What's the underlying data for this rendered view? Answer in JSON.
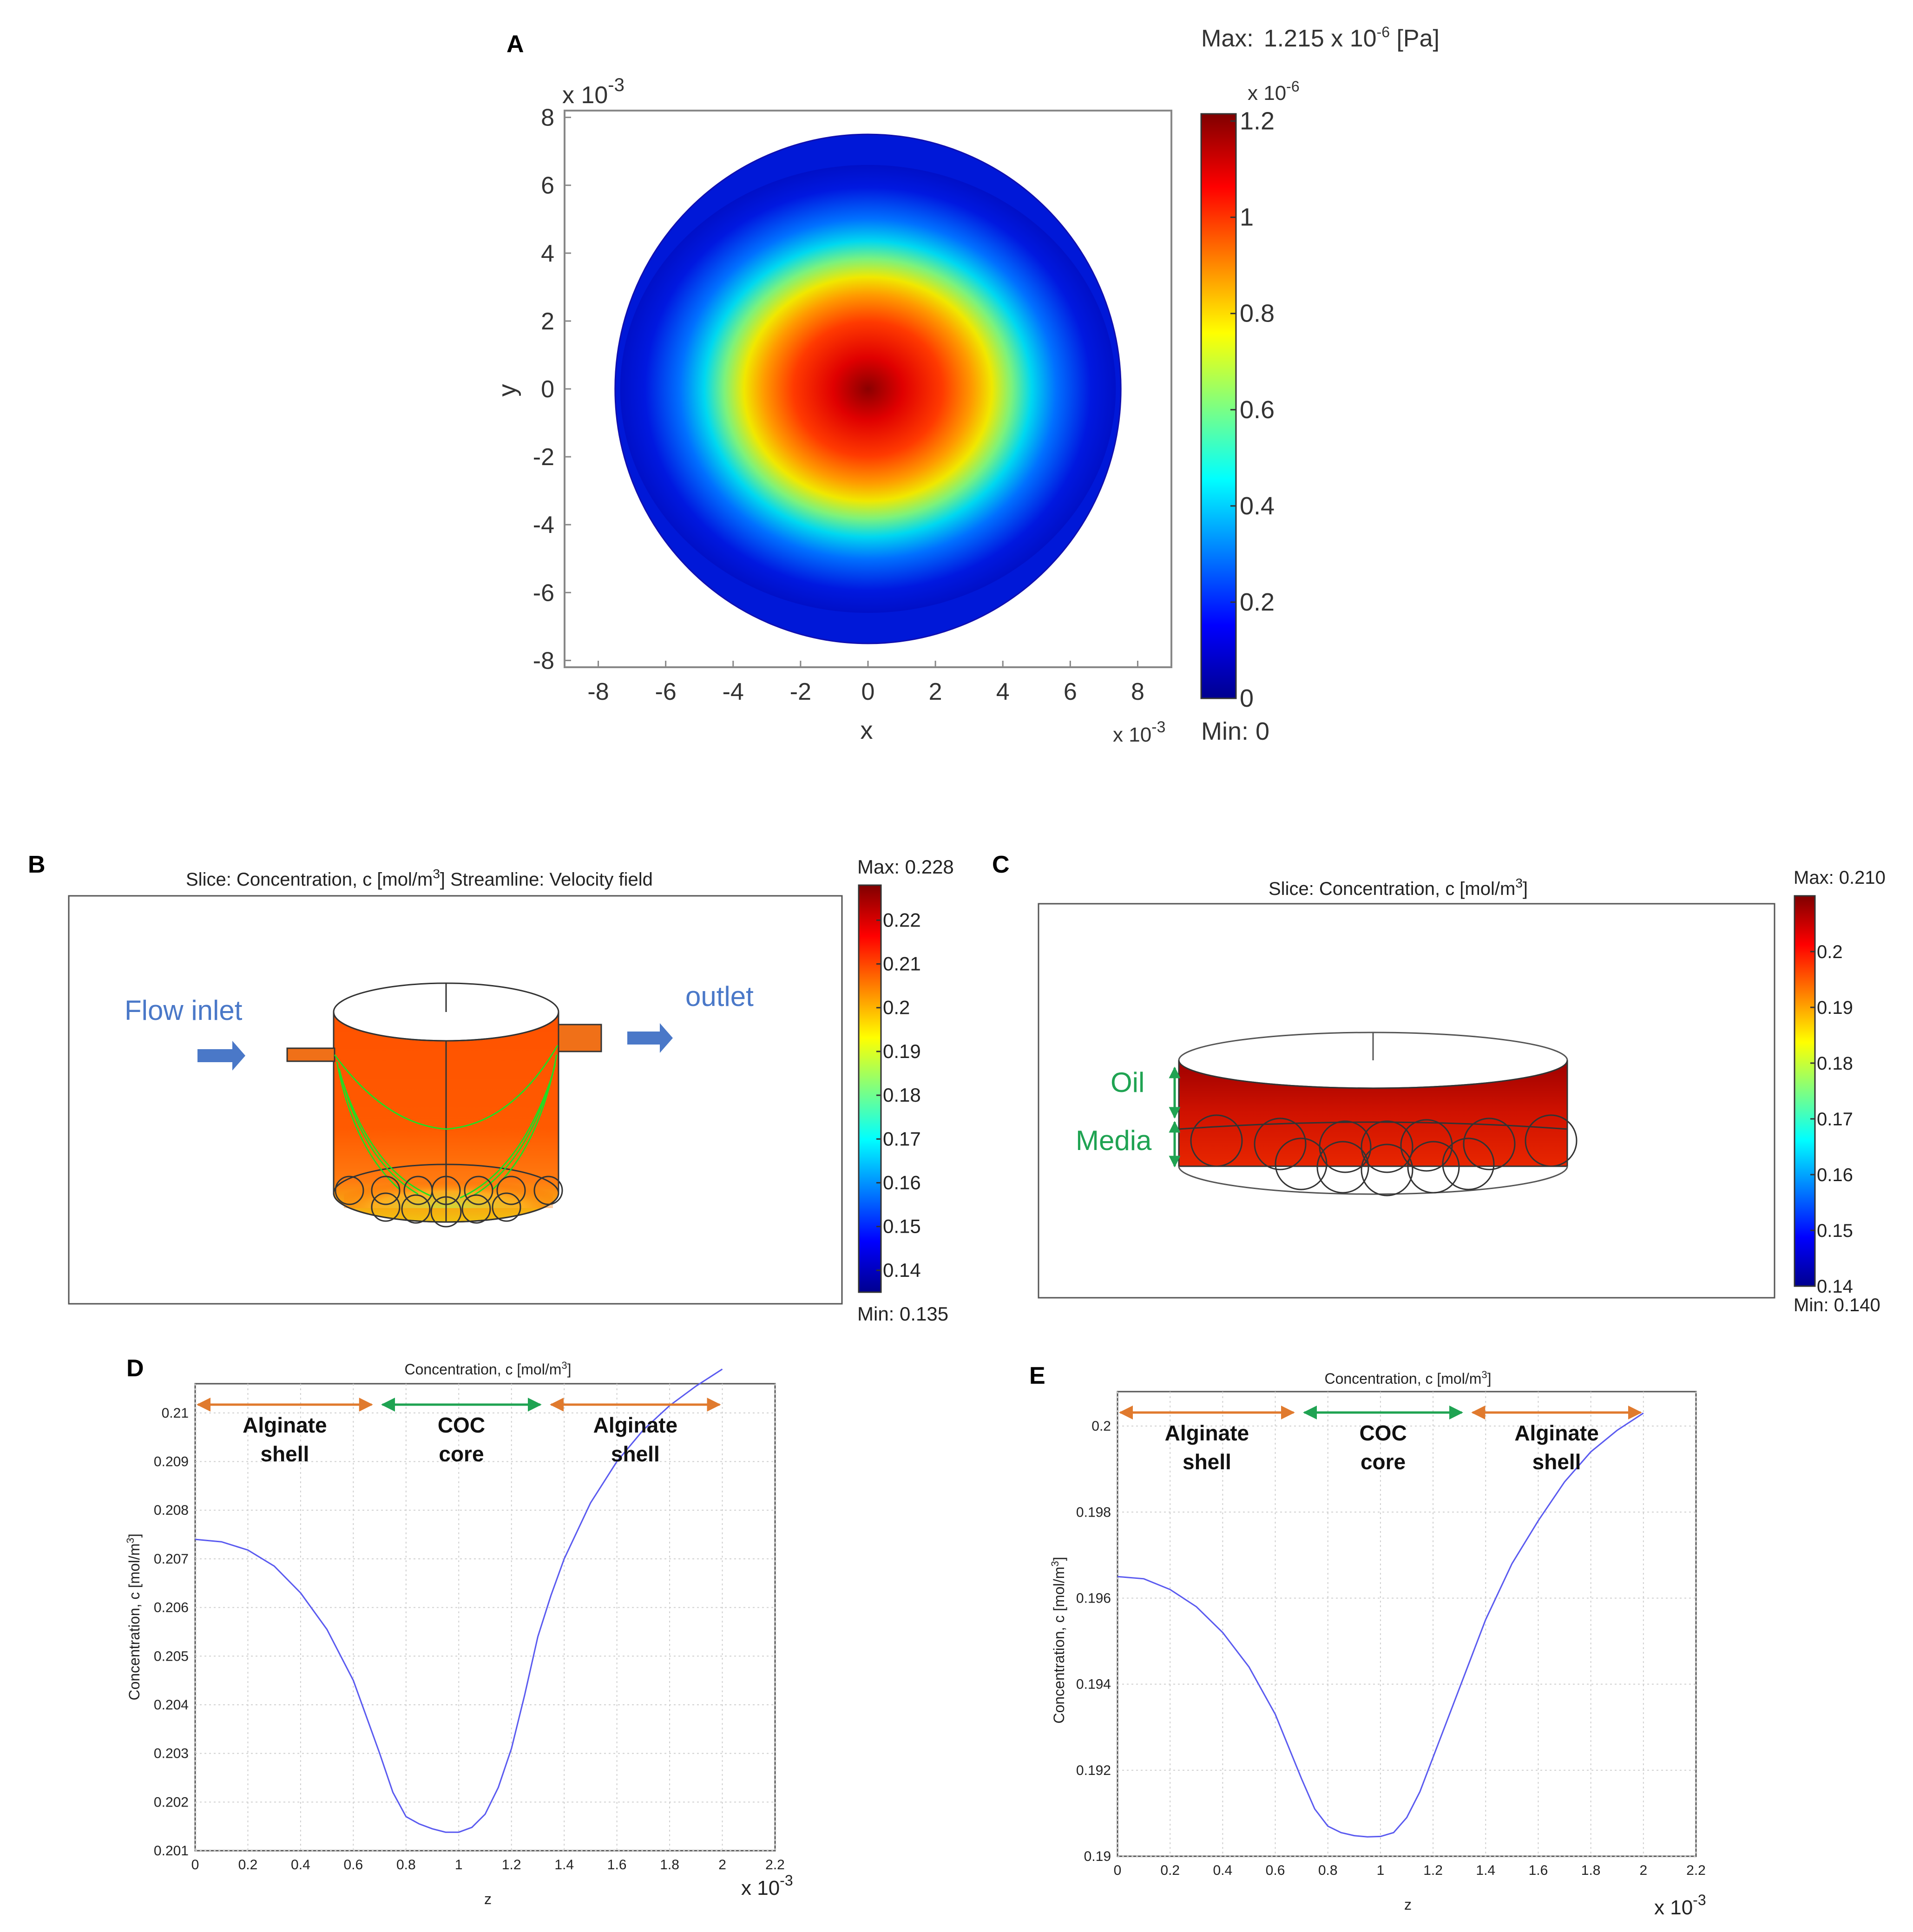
{
  "chart_data": [
    {
      "id": "A",
      "type": "heatmap",
      "panel_label": "A",
      "max_text": "Max:",
      "max_value": "1.215 x 10",
      "max_exp": "-6",
      "max_unit": " [Pa]",
      "min_text": "Min: 0",
      "xlabel": "x",
      "ylabel": "y",
      "x_scale_base": "x 10",
      "x_scale_exp": "-3",
      "y_scale_base": "x 10",
      "y_scale_exp": "-3",
      "xlim": [
        -9,
        9
      ],
      "ylim": [
        -8.2,
        8.2
      ],
      "xticks": [
        "-8",
        "-6",
        "-4",
        "-2",
        "0",
        "2",
        "4",
        "6",
        "8"
      ],
      "yticks": [
        "8",
        "6",
        "4",
        "2",
        "0",
        "-2",
        "-4",
        "-6",
        "-8"
      ],
      "domain_radius": 7.5,
      "peak_center": [
        0,
        0
      ],
      "colorbar_scale_base": "x 10",
      "colorbar_scale_exp": "-6",
      "colorbar_range": [
        0,
        1.215
      ],
      "colorbar_ticks": [
        "1.2",
        "1",
        "0.8",
        "0.6",
        "0.4",
        "0.2",
        "0"
      ],
      "colorbar_tick_values": [
        1.2,
        1.0,
        0.8,
        0.6,
        0.4,
        0.2,
        0.0
      ]
    },
    {
      "id": "B",
      "type": "3d-slice",
      "panel_label": "B",
      "title_slice": "Slice: Concentration, c [mol/m",
      "title_unit_sup": "3",
      "title_stream": "]   Streamline: Velocity field",
      "annotations": [
        "Flow inlet",
        "outlet"
      ],
      "max_label": "Max: 0.228",
      "min_label": "Min: 0.135",
      "colorbar_range": [
        0.135,
        0.228
      ],
      "colorbar_ticks": [
        "0.22",
        "0.21",
        "0.2",
        "0.19",
        "0.18",
        "0.17",
        "0.16",
        "0.15",
        "0.14"
      ],
      "colorbar_tick_values": [
        0.22,
        0.21,
        0.2,
        0.19,
        0.18,
        0.17,
        0.16,
        0.15,
        0.14
      ]
    },
    {
      "id": "C",
      "type": "3d-slice",
      "panel_label": "C",
      "title_slice": "Slice: Concentration, c [mol/m",
      "title_unit_sup": "3",
      "title_end": "]",
      "annotations": [
        "Oil",
        "Media"
      ],
      "max_label": "Max: 0.210",
      "min_label": "Min: 0.140",
      "colorbar_range": [
        0.14,
        0.21
      ],
      "colorbar_ticks": [
        "0.2",
        "0.19",
        "0.18",
        "0.17",
        "0.16",
        "0.15",
        "0.14"
      ],
      "colorbar_tick_values": [
        0.2,
        0.19,
        0.18,
        0.17,
        0.16,
        0.15,
        0.14
      ]
    },
    {
      "id": "D",
      "type": "line",
      "panel_label": "D",
      "title": "Concentration, c [mol/m",
      "title_sup": "3",
      "title_end": "]",
      "xlabel": "z",
      "ylabel": "Concentration, c [mol/m",
      "ylabel_sup": "3",
      "ylabel_end": "]",
      "x_scale_base": "x 10",
      "x_scale_exp": "-3",
      "xlim": [
        0,
        2.2
      ],
      "ylim": [
        0.201,
        0.2106
      ],
      "xticks": [
        "0",
        "0.2",
        "0.4",
        "0.6",
        "0.8",
        "1",
        "1.2",
        "1.4",
        "1.6",
        "1.8",
        "2",
        "2.2"
      ],
      "xtick_values": [
        0,
        0.2,
        0.4,
        0.6,
        0.8,
        1.0,
        1.2,
        1.4,
        1.6,
        1.8,
        2.0,
        2.2
      ],
      "yticks": [
        "0.21",
        "0.209",
        "0.208",
        "0.207",
        "0.206",
        "0.205",
        "0.204",
        "0.203",
        "0.202",
        "0.201"
      ],
      "ytick_values": [
        0.21,
        0.209,
        0.208,
        0.207,
        0.206,
        0.205,
        0.204,
        0.203,
        0.202,
        0.201
      ],
      "series": [
        {
          "name": "Concentration",
          "x": [
            0,
            0.1,
            0.2,
            0.3,
            0.4,
            0.5,
            0.6,
            0.7,
            0.75,
            0.8,
            0.85,
            0.9,
            0.95,
            1.0,
            1.05,
            1.1,
            1.15,
            1.2,
            1.25,
            1.3,
            1.35,
            1.4,
            1.5,
            1.6,
            1.7,
            1.8,
            1.9,
            2.0
          ],
          "y": [
            0.2074,
            0.20735,
            0.20718,
            0.20685,
            0.2063,
            0.20555,
            0.2045,
            0.203,
            0.2022,
            0.2017,
            0.20155,
            0.20145,
            0.20138,
            0.20138,
            0.20148,
            0.20175,
            0.2023,
            0.2031,
            0.2042,
            0.2054,
            0.20625,
            0.207,
            0.20815,
            0.209,
            0.20965,
            0.21015,
            0.21055,
            0.2109
          ]
        }
      ],
      "regions": [
        {
          "label1": "Alginate",
          "label2": "shell",
          "from": 0.0,
          "to": 0.68,
          "color": "#E07A2E"
        },
        {
          "label1": "COC",
          "label2": "core",
          "from": 0.7,
          "to": 1.32,
          "color": "#1FA352"
        },
        {
          "label1": "Alginate",
          "label2": "shell",
          "from": 1.34,
          "to": 2.0,
          "color": "#E07A2E"
        }
      ]
    },
    {
      "id": "E",
      "type": "line",
      "panel_label": "E",
      "title": "Concentration, c [mol/m",
      "title_sup": "3",
      "title_end": "]",
      "xlabel": "z",
      "ylabel": "Concentration, c [mol/m",
      "ylabel_sup": "3",
      "ylabel_end": "]",
      "x_scale_base": "x 10",
      "x_scale_exp": "-3",
      "xlim": [
        0,
        2.2
      ],
      "ylim": [
        0.19,
        0.2008
      ],
      "xticks": [
        "0",
        "0.2",
        "0.4",
        "0.6",
        "0.8",
        "1",
        "1.2",
        "1.4",
        "1.6",
        "1.8",
        "2",
        "2.2"
      ],
      "xtick_values": [
        0,
        0.2,
        0.4,
        0.6,
        0.8,
        1.0,
        1.2,
        1.4,
        1.6,
        1.8,
        2.0,
        2.2
      ],
      "yticks": [
        "0.2",
        "0.198",
        "0.196",
        "0.194",
        "0.192",
        "0.19"
      ],
      "ytick_values": [
        0.2,
        0.198,
        0.196,
        0.194,
        0.192,
        0.19
      ],
      "series": [
        {
          "name": "Concentration",
          "x": [
            0,
            0.1,
            0.2,
            0.3,
            0.4,
            0.5,
            0.6,
            0.7,
            0.75,
            0.8,
            0.85,
            0.9,
            0.95,
            1.0,
            1.05,
            1.1,
            1.15,
            1.2,
            1.25,
            1.3,
            1.35,
            1.4,
            1.5,
            1.6,
            1.7,
            1.8,
            1.9,
            2.0
          ],
          "y": [
            0.1965,
            0.19645,
            0.1962,
            0.1958,
            0.1952,
            0.1944,
            0.1933,
            0.1918,
            0.1911,
            0.1907,
            0.19055,
            0.19048,
            0.19045,
            0.19046,
            0.19055,
            0.1909,
            0.1915,
            0.1923,
            0.1931,
            0.1939,
            0.1947,
            0.1955,
            0.1968,
            0.1978,
            0.1987,
            0.1994,
            0.1999,
            0.2003
          ]
        }
      ],
      "regions": [
        {
          "label1": "Alginate",
          "label2": "shell",
          "from": 0.0,
          "to": 0.68,
          "color": "#E07A2E"
        },
        {
          "label1": "COC",
          "label2": "core",
          "from": 0.7,
          "to": 1.32,
          "color": "#1FA352"
        },
        {
          "label1": "Alginate",
          "label2": "shell",
          "from": 1.34,
          "to": 2.0,
          "color": "#E07A2E"
        }
      ]
    }
  ]
}
